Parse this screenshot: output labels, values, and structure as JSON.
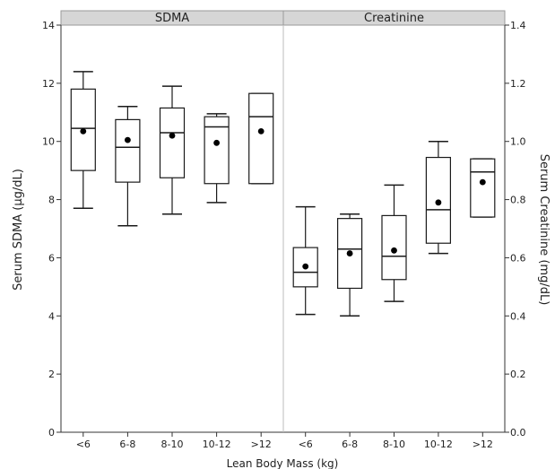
{
  "chart_data": {
    "type": "box",
    "xlabel": "Lean Body Mass (kg)",
    "categories": [
      "<6",
      "6-8",
      "8-10",
      "10-12",
      ">12"
    ],
    "panels": [
      {
        "title": "SDMA",
        "ylabel": "Serum SDMA (µg/dL)",
        "axis_side": "left",
        "ylim": [
          0,
          14
        ],
        "yticks": [
          0,
          2,
          4,
          6,
          8,
          10,
          12,
          14
        ],
        "boxes": [
          {
            "category": "<6",
            "min": 7.7,
            "q1": 9.0,
            "median": 10.45,
            "q3": 11.8,
            "max": 12.4,
            "mean": 10.35
          },
          {
            "category": "6-8",
            "min": 7.1,
            "q1": 8.6,
            "median": 9.8,
            "q3": 10.75,
            "max": 11.2,
            "mean": 10.05
          },
          {
            "category": "8-10",
            "min": 7.5,
            "q1": 8.75,
            "median": 10.3,
            "q3": 11.15,
            "max": 11.9,
            "mean": 10.2
          },
          {
            "category": "10-12",
            "min": 7.9,
            "q1": 8.55,
            "median": 10.5,
            "q3": 10.85,
            "max": 10.95,
            "mean": 9.95
          },
          {
            "category": ">12",
            "min": 8.55,
            "q1": 8.55,
            "median": 10.85,
            "q3": 11.65,
            "max": 11.65,
            "mean": 10.35
          }
        ]
      },
      {
        "title": "Creatinine",
        "ylabel": "Serum Creatinine (mg/dL)",
        "axis_side": "right",
        "ylim": [
          0,
          1.4
        ],
        "yticks": [
          0.0,
          0.2,
          0.4,
          0.6,
          0.8,
          1.0,
          1.2,
          1.4
        ],
        "ytick_labels": [
          "0.0",
          "0.2",
          "0.4",
          "0.6",
          "0.8",
          "1.0",
          "1.2",
          "1.4"
        ],
        "boxes": [
          {
            "category": "<6",
            "min": 0.405,
            "q1": 0.5,
            "median": 0.55,
            "q3": 0.635,
            "max": 0.775,
            "mean": 0.57
          },
          {
            "category": "6-8",
            "min": 0.4,
            "q1": 0.495,
            "median": 0.63,
            "q3": 0.735,
            "max": 0.75,
            "mean": 0.615
          },
          {
            "category": "8-10",
            "min": 0.45,
            "q1": 0.525,
            "median": 0.605,
            "q3": 0.745,
            "max": 0.85,
            "mean": 0.625
          },
          {
            "category": "10-12",
            "min": 0.615,
            "q1": 0.65,
            "median": 0.765,
            "q3": 0.945,
            "max": 1.0,
            "mean": 0.79
          },
          {
            "category": ">12",
            "min": 0.74,
            "q1": 0.74,
            "median": 0.895,
            "q3": 0.94,
            "max": 0.94,
            "mean": 0.86
          }
        ]
      }
    ],
    "colors": {
      "axis": "#333333",
      "box_stroke": "#1a1a1a",
      "mean_dot": "#000000",
      "strip_fill": "#d6d6d6",
      "strip_stroke": "#9a9a9a",
      "divider": "#bdbdbd"
    }
  }
}
